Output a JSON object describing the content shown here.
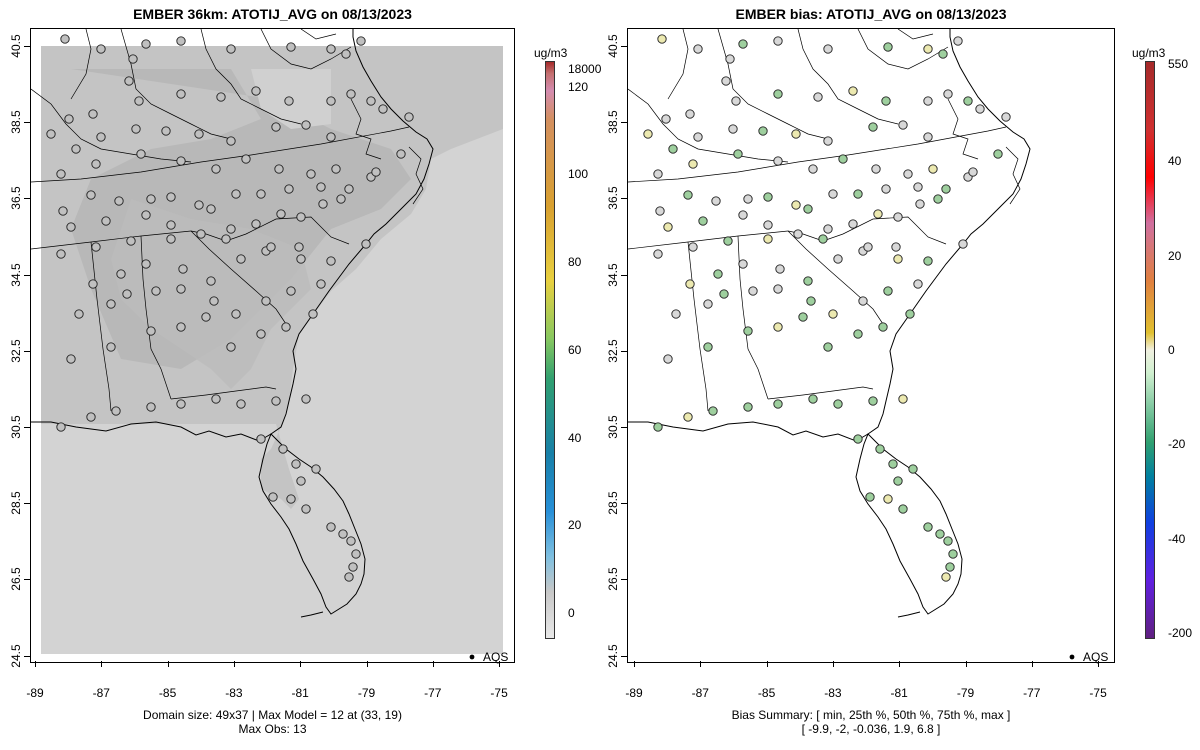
{
  "left": {
    "title": "EMBER 36km: ATOTIJ_AVG on 08/13/2023",
    "caption1": "Domain size: 49x37 | Max Model = 12 at (33, 19)",
    "caption2": "Max Obs: 13",
    "legend": "AQS",
    "unit": "ug/m3",
    "cbar_labels": [
      "18000",
      "120",
      "100",
      "80",
      "60",
      "40",
      "20",
      "0"
    ]
  },
  "right": {
    "title": "EMBER bias: ATOTIJ_AVG on 08/13/2023",
    "caption1": "Bias Summary: [ min, 25th %, 50th %, 75th %, max ]",
    "caption2": "[ -9.9,   -2,   -0.036,   1.9,   6.8 ]",
    "legend": "AQS",
    "unit": "ug/m3",
    "cbar_labels": [
      "550",
      "40",
      "20",
      "0",
      "-20",
      "-40",
      "-200"
    ]
  },
  "x_ticks": [
    "-89",
    "-87",
    "-85",
    "-83",
    "-81",
    "-79",
    "-77",
    "-75"
  ],
  "y_ticks": [
    "40.5",
    "38.5",
    "36.5",
    "34.5",
    "32.5",
    "30.5",
    "28.5",
    "26.5",
    "24.5"
  ],
  "colors": {
    "model_field": "#c8c8c8",
    "model_dark": "#b4b4b4",
    "ocean_field": "#d3d3d3",
    "site_gray": "#c0c0c0",
    "site_green": "#9ecf9e",
    "site_yellow": "#ece9b0"
  }
}
